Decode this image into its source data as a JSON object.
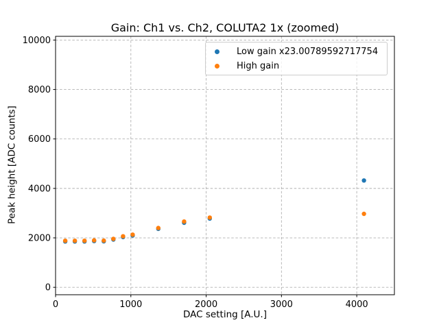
{
  "window": {
    "background": "#ffffff"
  },
  "colors": {
    "low_gain": "#1f77b4",
    "high_gain": "#ff7f0e",
    "grid": "#b0b0b0",
    "spine": "#000000",
    "legend_border": "#cccccc"
  },
  "chart_data": {
    "type": "scatter",
    "title": "Gain: Ch1 vs. Ch2, COLUTA2 1x (zoomed)",
    "xlabel": "DAC setting [A.U.]",
    "ylabel": "Peak height [ADC counts]",
    "xlim": [
      0,
      4500
    ],
    "ylim": [
      -300,
      10150
    ],
    "xticks": [
      0,
      1000,
      2000,
      3000,
      4000
    ],
    "yticks": [
      0,
      2000,
      4000,
      6000,
      8000,
      10000
    ],
    "grid": true,
    "grid_style": "dashed",
    "legend_position": "upper right",
    "x": [
      128,
      256,
      384,
      512,
      640,
      768,
      896,
      1024,
      1365,
      1707,
      2048,
      4096
    ],
    "series": [
      {
        "name": "Low gain x23.00789592717754",
        "color": "#1f77b4",
        "values": [
          1855,
          1855,
          1855,
          1870,
          1860,
          1930,
          2030,
          2095,
          2365,
          2610,
          2780,
          4320
        ]
      },
      {
        "name": "High gain",
        "color": "#ff7f0e",
        "values": [
          1885,
          1885,
          1885,
          1900,
          1890,
          1960,
          2065,
          2130,
          2400,
          2660,
          2820,
          2970
        ]
      }
    ]
  }
}
